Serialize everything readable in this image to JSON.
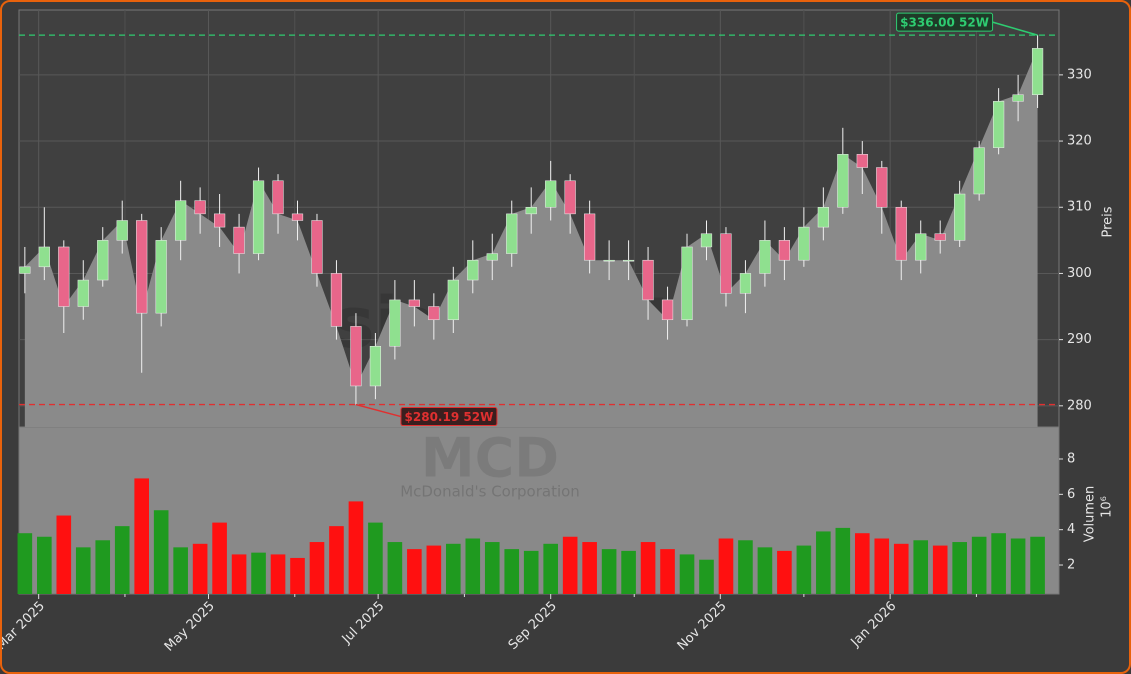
{
  "chart_data": {
    "type": "candlestick",
    "watermark": "forexsignale.trade",
    "symbol": "MCD",
    "company": "McDonald's Corporation",
    "x": [
      0,
      1,
      2,
      3,
      4,
      5,
      6,
      7,
      8,
      9,
      10,
      11,
      12,
      13,
      14,
      15,
      16,
      17,
      18,
      19,
      20,
      21,
      22,
      23,
      24,
      25,
      26,
      27,
      28,
      29,
      30,
      31,
      32,
      33,
      34,
      35,
      36,
      37,
      38,
      39,
      40,
      41,
      42,
      43,
      44,
      45,
      46,
      47,
      48,
      49,
      50,
      51,
      52
    ],
    "open": [
      300,
      301,
      304,
      295,
      299,
      305,
      308,
      294,
      305,
      311,
      309,
      307,
      303,
      314,
      309,
      308,
      300,
      292,
      283,
      289,
      296,
      295,
      293,
      299,
      302,
      303,
      309,
      310,
      314,
      309,
      302,
      302,
      302,
      296,
      293,
      304,
      306,
      297,
      300,
      305,
      302,
      307,
      310,
      318,
      316,
      310,
      302,
      306,
      305,
      312,
      319,
      326,
      327
    ],
    "high": [
      304,
      310,
      305,
      302,
      307,
      311,
      309,
      307,
      314,
      313,
      312,
      309,
      316,
      315,
      311,
      309,
      302,
      294,
      291,
      299,
      299,
      297,
      301,
      305,
      306,
      311,
      313,
      317,
      315,
      311,
      305,
      305,
      304,
      298,
      306,
      308,
      307,
      302,
      308,
      307,
      310,
      313,
      322,
      320,
      317,
      311,
      308,
      308,
      314,
      320,
      328,
      330,
      336
    ],
    "low": [
      297,
      299,
      291,
      293,
      298,
      303,
      285,
      292,
      302,
      306,
      304,
      300,
      302,
      306,
      305,
      298,
      290,
      280.19,
      281,
      287,
      292,
      290,
      291,
      297,
      299,
      301,
      306,
      308,
      306,
      300,
      299,
      299,
      293,
      290,
      292,
      302,
      295,
      294,
      298,
      299,
      301,
      305,
      309,
      312,
      306,
      299,
      300,
      303,
      304,
      311,
      318,
      323,
      325
    ],
    "close": [
      301,
      304,
      295,
      299,
      305,
      308,
      294,
      305,
      311,
      309,
      307,
      303,
      314,
      309,
      308,
      300,
      292,
      283,
      289,
      296,
      295,
      293,
      299,
      302,
      303,
      309,
      310,
      314,
      309,
      302,
      302,
      302,
      296,
      293,
      304,
      306,
      297,
      300,
      305,
      302,
      307,
      310,
      318,
      316,
      310,
      302,
      306,
      305,
      312,
      319,
      326,
      327,
      334
    ],
    "volume": [
      3.8,
      3.6,
      4.8,
      3.0,
      3.4,
      4.2,
      6.9,
      5.1,
      3.0,
      3.2,
      4.4,
      2.6,
      2.7,
      2.6,
      2.4,
      3.3,
      4.2,
      5.6,
      4.4,
      3.3,
      2.9,
      3.1,
      3.2,
      3.5,
      3.3,
      2.9,
      2.8,
      3.2,
      3.6,
      3.3,
      2.9,
      2.8,
      3.3,
      2.9,
      2.6,
      2.3,
      3.5,
      3.4,
      3.0,
      2.8,
      3.1,
      3.9,
      4.1,
      3.8,
      3.5,
      3.2,
      3.4,
      3.1,
      3.3,
      3.6,
      3.8,
      3.5,
      3.6
    ],
    "up_color": "#8fe08f",
    "down_color": "#e8668a",
    "volume_up_color": "#1f9a1f",
    "volume_down_color": "#ff1010",
    "xlim": [
      -0.3,
      53.1
    ],
    "xticks": [
      {
        "value": 0.71,
        "label": "Mar 2025"
      },
      {
        "value": 9.43,
        "label": "May 2025"
      },
      {
        "value": 18.14,
        "label": "Jul 2025"
      },
      {
        "value": 27.0,
        "label": "Sep 2025"
      },
      {
        "value": 35.71,
        "label": "Nov 2025"
      },
      {
        "value": 44.43,
        "label": "Jan 2026"
      }
    ],
    "xminorticks": [
      5.14,
      13.86,
      22.57,
      31.29,
      40.0,
      48.86
    ],
    "ylim": [
      276.8,
      339.8
    ],
    "yticks": [
      280,
      290,
      300,
      310,
      320,
      330
    ],
    "ylabel": "Preis",
    "volume_ylim": [
      0.36,
      9.81
    ],
    "volume_yticks": [
      2,
      4,
      6,
      8
    ],
    "volume_ylabel": "Volumen",
    "volume_unit": "10⁶",
    "grid": true,
    "annotations": [
      {
        "value": 336.0,
        "label": "$336.00 52W",
        "color": "#2ecc71"
      },
      {
        "value": 280.19,
        "label": "$280.19 52W",
        "color": "#e03030"
      }
    ]
  }
}
